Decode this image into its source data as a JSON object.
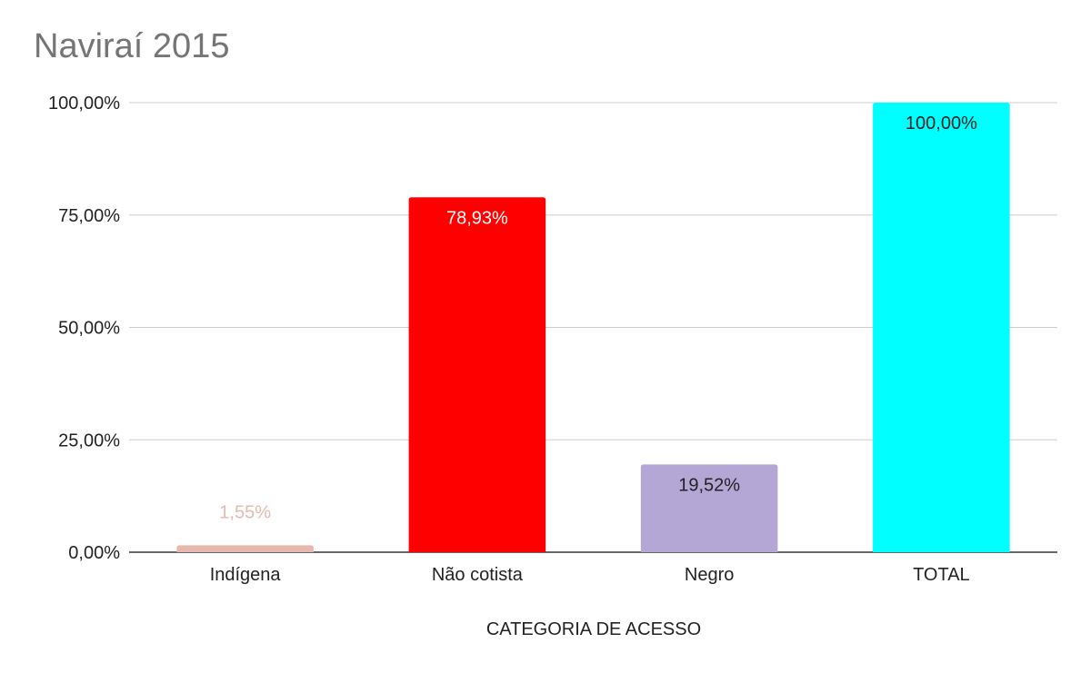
{
  "chart_data": {
    "type": "bar",
    "title": "Naviraí 2015",
    "xlabel": "CATEGORIA DE ACESSO",
    "ylabel": "",
    "categories": [
      "Indígena",
      "Não cotista",
      "Negro",
      "TOTAL"
    ],
    "values": [
      1.55,
      78.93,
      19.52,
      100.0
    ],
    "data_labels": [
      "1,55%",
      "78,93%",
      "19,52%",
      "100,00%"
    ],
    "bar_colors": [
      "#e6b8af",
      "#ff0000",
      "#b4a7d6",
      "#00ffff"
    ],
    "data_label_colors": [
      "#e6b8af",
      "#ffffff",
      "#222222",
      "#222222"
    ],
    "ylim": [
      0,
      100
    ],
    "yticks": [
      0,
      25,
      50,
      75,
      100
    ],
    "ytick_labels": [
      "0,00%",
      "25,00%",
      "50,00%",
      "75,00%",
      "100,00%"
    ],
    "grid": true,
    "legend": "none"
  }
}
